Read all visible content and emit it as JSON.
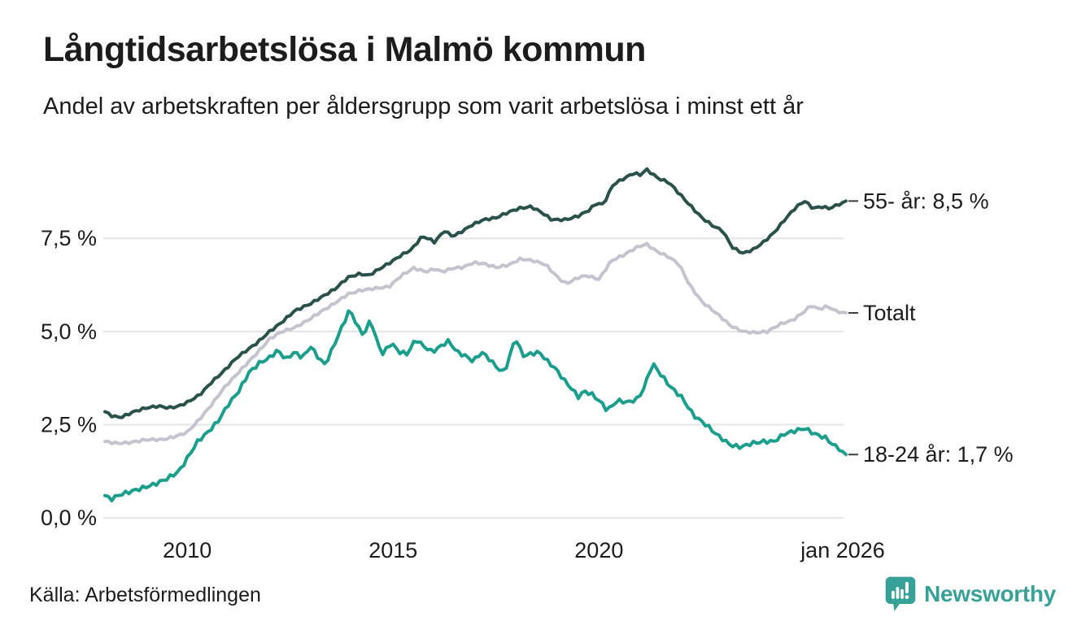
{
  "header": {
    "title": "Långtidsarbetslösa i Malmö kommun",
    "subtitle": "Andel av arbetskraften per åldersgrupp som varit arbetslösa i minst ett år"
  },
  "footer": {
    "source": "Källa: Arbetsförmedlingen",
    "brand_name": "Newsworthy",
    "brand_icon": "newsworthy-pin-barchart-icon"
  },
  "colors": {
    "title_text": "#1c1c1c",
    "axis_text": "#1c1c1c",
    "grid": "#e5e4e8",
    "leader": "#3c3c3c",
    "series_55": "#2a5248",
    "series_total": "#c5c3ce",
    "series_1824": "#1b9e8c",
    "brand": "#38a197",
    "background": "#ffffff"
  },
  "chart_data": {
    "type": "line",
    "title": "Långtidsarbetslösa i Malmö kommun",
    "subtitle": "Andel av arbetskraften per åldersgrupp som varit arbetslösa i minst ett år",
    "unit": "%",
    "grid": "horizontal",
    "legend_position": "right-end-labels",
    "x_domain": [
      2008,
      2026
    ],
    "y_domain": [
      0,
      9.9
    ],
    "y_ticks": [
      {
        "value": 0,
        "label": "0,0 %"
      },
      {
        "value": 2.5,
        "label": "2,5 %"
      },
      {
        "value": 5,
        "label": "5,0 %"
      },
      {
        "value": 7.5,
        "label": "7,5 %"
      }
    ],
    "x_ticks": [
      {
        "value": 2010,
        "label": "2010"
      },
      {
        "value": 2015,
        "label": "2015"
      },
      {
        "value": 2020,
        "label": "2020"
      },
      {
        "value": 2026,
        "label": "jan 2026"
      }
    ],
    "series": [
      {
        "id": "age-55-plus",
        "label": "55- år: 8,5 %",
        "end_value": 8.5,
        "color_key": "series_55",
        "jitter": 0.03,
        "points": [
          [
            2008.0,
            2.85
          ],
          [
            2008.2,
            2.72
          ],
          [
            2008.4,
            2.7
          ],
          [
            2008.7,
            2.85
          ],
          [
            2009.0,
            2.95
          ],
          [
            2009.3,
            3.0
          ],
          [
            2009.55,
            2.95
          ],
          [
            2009.8,
            3.0
          ],
          [
            2010.0,
            3.1
          ],
          [
            2010.3,
            3.3
          ],
          [
            2010.6,
            3.65
          ],
          [
            2010.9,
            3.95
          ],
          [
            2011.2,
            4.3
          ],
          [
            2011.45,
            4.5
          ],
          [
            2011.7,
            4.7
          ],
          [
            2012.0,
            5.0
          ],
          [
            2012.3,
            5.25
          ],
          [
            2012.6,
            5.55
          ],
          [
            2012.8,
            5.65
          ],
          [
            2013.0,
            5.75
          ],
          [
            2013.3,
            5.95
          ],
          [
            2013.6,
            6.15
          ],
          [
            2013.9,
            6.45
          ],
          [
            2014.2,
            6.55
          ],
          [
            2014.4,
            6.5
          ],
          [
            2014.7,
            6.7
          ],
          [
            2015.0,
            6.9
          ],
          [
            2015.2,
            7.05
          ],
          [
            2015.45,
            7.2
          ],
          [
            2015.7,
            7.55
          ],
          [
            2015.85,
            7.5
          ],
          [
            2016.0,
            7.4
          ],
          [
            2016.25,
            7.7
          ],
          [
            2016.45,
            7.55
          ],
          [
            2016.7,
            7.7
          ],
          [
            2016.9,
            7.85
          ],
          [
            2017.2,
            8.0
          ],
          [
            2017.5,
            8.05
          ],
          [
            2017.8,
            8.2
          ],
          [
            2018.05,
            8.3
          ],
          [
            2018.35,
            8.35
          ],
          [
            2018.6,
            8.2
          ],
          [
            2018.85,
            8.0
          ],
          [
            2019.2,
            8.0
          ],
          [
            2019.5,
            8.1
          ],
          [
            2019.75,
            8.25
          ],
          [
            2019.95,
            8.45
          ],
          [
            2020.1,
            8.4
          ],
          [
            2020.35,
            8.95
          ],
          [
            2020.6,
            9.1
          ],
          [
            2020.85,
            9.25
          ],
          [
            2021.0,
            9.2
          ],
          [
            2021.15,
            9.35
          ],
          [
            2021.45,
            9.1
          ],
          [
            2021.7,
            9.0
          ],
          [
            2021.95,
            8.7
          ],
          [
            2022.2,
            8.4
          ],
          [
            2022.5,
            8.05
          ],
          [
            2022.75,
            7.85
          ],
          [
            2023.0,
            7.7
          ],
          [
            2023.25,
            7.25
          ],
          [
            2023.5,
            7.1
          ],
          [
            2023.75,
            7.2
          ],
          [
            2024.0,
            7.4
          ],
          [
            2024.25,
            7.65
          ],
          [
            2024.55,
            8.05
          ],
          [
            2024.8,
            8.35
          ],
          [
            2025.0,
            8.5
          ],
          [
            2025.2,
            8.3
          ],
          [
            2025.4,
            8.35
          ],
          [
            2025.6,
            8.3
          ],
          [
            2025.8,
            8.4
          ],
          [
            2026.0,
            8.5
          ]
        ]
      },
      {
        "id": "total",
        "label": "Totalt",
        "end_value": 5.5,
        "color_key": "series_total",
        "jitter": 0.03,
        "points": [
          [
            2008.0,
            2.05
          ],
          [
            2008.3,
            2.0
          ],
          [
            2008.6,
            2.02
          ],
          [
            2009.0,
            2.1
          ],
          [
            2009.4,
            2.1
          ],
          [
            2009.7,
            2.18
          ],
          [
            2010.0,
            2.3
          ],
          [
            2010.3,
            2.65
          ],
          [
            2010.6,
            3.05
          ],
          [
            2010.9,
            3.5
          ],
          [
            2011.2,
            3.85
          ],
          [
            2011.5,
            4.2
          ],
          [
            2011.8,
            4.55
          ],
          [
            2012.0,
            4.8
          ],
          [
            2012.3,
            5.0
          ],
          [
            2012.6,
            5.1
          ],
          [
            2012.9,
            5.28
          ],
          [
            2013.2,
            5.5
          ],
          [
            2013.5,
            5.7
          ],
          [
            2013.9,
            6.0
          ],
          [
            2014.2,
            6.1
          ],
          [
            2014.5,
            6.15
          ],
          [
            2014.9,
            6.2
          ],
          [
            2015.2,
            6.5
          ],
          [
            2015.5,
            6.7
          ],
          [
            2015.8,
            6.6
          ],
          [
            2016.0,
            6.68
          ],
          [
            2016.2,
            6.6
          ],
          [
            2016.45,
            6.7
          ],
          [
            2016.7,
            6.72
          ],
          [
            2016.95,
            6.85
          ],
          [
            2017.2,
            6.82
          ],
          [
            2017.5,
            6.72
          ],
          [
            2017.8,
            6.78
          ],
          [
            2018.1,
            6.95
          ],
          [
            2018.4,
            6.9
          ],
          [
            2018.7,
            6.8
          ],
          [
            2019.0,
            6.45
          ],
          [
            2019.2,
            6.28
          ],
          [
            2019.5,
            6.45
          ],
          [
            2019.7,
            6.5
          ],
          [
            2020.0,
            6.4
          ],
          [
            2020.3,
            6.9
          ],
          [
            2020.6,
            7.05
          ],
          [
            2020.9,
            7.25
          ],
          [
            2021.15,
            7.35
          ],
          [
            2021.4,
            7.15
          ],
          [
            2021.7,
            7.0
          ],
          [
            2021.95,
            6.8
          ],
          [
            2022.2,
            6.25
          ],
          [
            2022.5,
            5.8
          ],
          [
            2022.9,
            5.45
          ],
          [
            2023.2,
            5.15
          ],
          [
            2023.5,
            5.0
          ],
          [
            2023.8,
            4.97
          ],
          [
            2024.1,
            5.0
          ],
          [
            2024.4,
            5.2
          ],
          [
            2024.7,
            5.3
          ],
          [
            2024.95,
            5.5
          ],
          [
            2025.15,
            5.7
          ],
          [
            2025.35,
            5.6
          ],
          [
            2025.55,
            5.68
          ],
          [
            2025.75,
            5.55
          ],
          [
            2026.0,
            5.5
          ]
        ]
      },
      {
        "id": "age-18-24",
        "label": "18-24 år: 1,7 %",
        "end_value": 1.7,
        "color_key": "series_1824",
        "jitter": 0.05,
        "points": [
          [
            2008.0,
            0.6
          ],
          [
            2008.15,
            0.5
          ],
          [
            2008.35,
            0.62
          ],
          [
            2008.6,
            0.7
          ],
          [
            2008.9,
            0.8
          ],
          [
            2009.2,
            0.9
          ],
          [
            2009.5,
            1.05
          ],
          [
            2009.8,
            1.25
          ],
          [
            2010.0,
            1.6
          ],
          [
            2010.25,
            2.05
          ],
          [
            2010.5,
            2.3
          ],
          [
            2010.75,
            2.6
          ],
          [
            2011.0,
            3.05
          ],
          [
            2011.25,
            3.4
          ],
          [
            2011.5,
            3.9
          ],
          [
            2011.75,
            4.15
          ],
          [
            2012.0,
            4.3
          ],
          [
            2012.2,
            4.5
          ],
          [
            2012.4,
            4.25
          ],
          [
            2012.6,
            4.45
          ],
          [
            2012.8,
            4.3
          ],
          [
            2013.0,
            4.6
          ],
          [
            2013.15,
            4.35
          ],
          [
            2013.35,
            4.1
          ],
          [
            2013.55,
            4.6
          ],
          [
            2013.75,
            5.1
          ],
          [
            2013.95,
            5.6
          ],
          [
            2014.15,
            5.1
          ],
          [
            2014.3,
            4.9
          ],
          [
            2014.45,
            5.35
          ],
          [
            2014.6,
            4.75
          ],
          [
            2014.75,
            4.4
          ],
          [
            2014.95,
            4.7
          ],
          [
            2015.15,
            4.45
          ],
          [
            2015.35,
            4.4
          ],
          [
            2015.55,
            4.8
          ],
          [
            2015.75,
            4.6
          ],
          [
            2015.95,
            4.45
          ],
          [
            2016.15,
            4.6
          ],
          [
            2016.35,
            4.75
          ],
          [
            2016.55,
            4.45
          ],
          [
            2016.75,
            4.35
          ],
          [
            2016.95,
            4.2
          ],
          [
            2017.15,
            4.45
          ],
          [
            2017.35,
            4.25
          ],
          [
            2017.55,
            4.0
          ],
          [
            2017.7,
            3.9
          ],
          [
            2017.85,
            4.4
          ],
          [
            2017.97,
            4.85
          ],
          [
            2018.15,
            4.35
          ],
          [
            2018.35,
            4.4
          ],
          [
            2018.55,
            4.45
          ],
          [
            2018.75,
            4.2
          ],
          [
            2018.95,
            4.0
          ],
          [
            2019.15,
            3.7
          ],
          [
            2019.35,
            3.45
          ],
          [
            2019.5,
            3.25
          ],
          [
            2019.65,
            3.4
          ],
          [
            2019.85,
            3.3
          ],
          [
            2020.05,
            3.1
          ],
          [
            2020.2,
            2.88
          ],
          [
            2020.45,
            3.15
          ],
          [
            2020.7,
            3.1
          ],
          [
            2020.95,
            3.2
          ],
          [
            2021.1,
            3.5
          ],
          [
            2021.3,
            4.15
          ],
          [
            2021.5,
            3.85
          ],
          [
            2021.75,
            3.5
          ],
          [
            2022.0,
            3.25
          ],
          [
            2022.3,
            2.75
          ],
          [
            2022.6,
            2.5
          ],
          [
            2022.9,
            2.2
          ],
          [
            2023.2,
            1.95
          ],
          [
            2023.45,
            1.9
          ],
          [
            2023.7,
            2.0
          ],
          [
            2024.0,
            2.05
          ],
          [
            2024.25,
            2.05
          ],
          [
            2024.5,
            2.25
          ],
          [
            2024.8,
            2.35
          ],
          [
            2025.0,
            2.4
          ],
          [
            2025.25,
            2.25
          ],
          [
            2025.5,
            2.15
          ],
          [
            2025.7,
            1.95
          ],
          [
            2025.85,
            1.85
          ],
          [
            2026.0,
            1.7
          ]
        ]
      }
    ]
  }
}
